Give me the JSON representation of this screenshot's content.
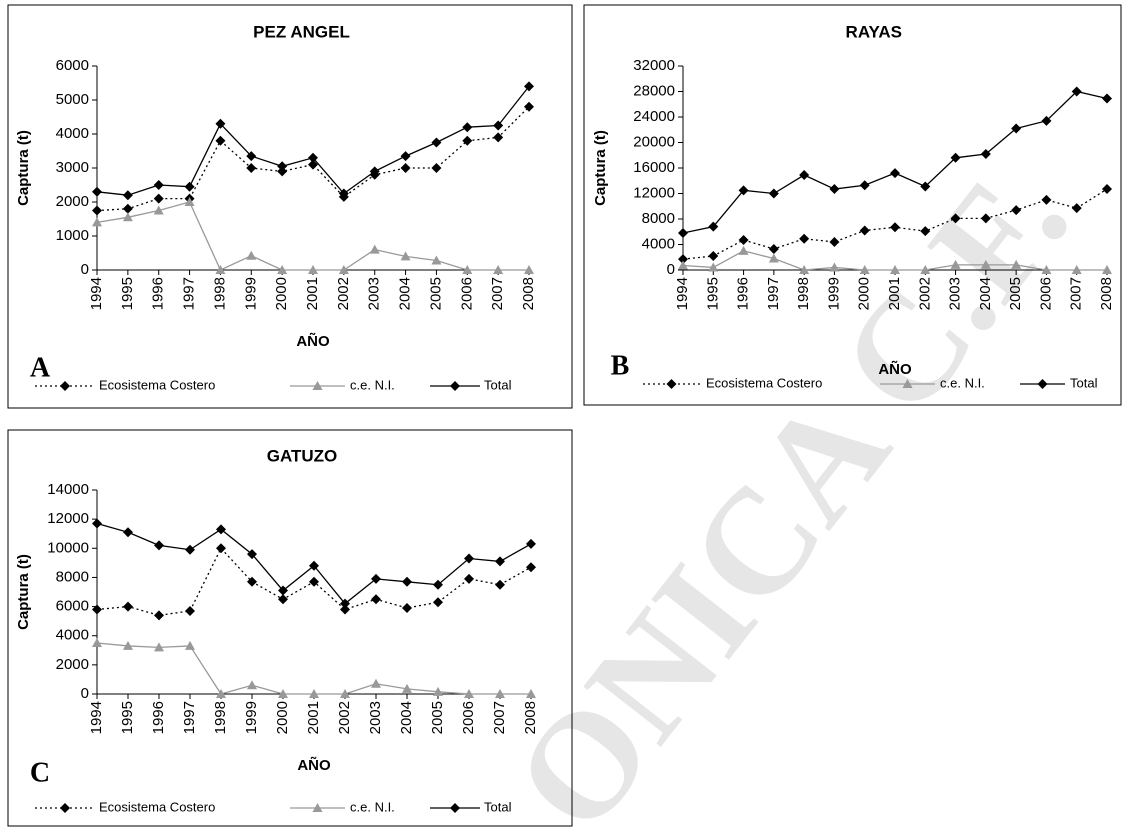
{
  "chart_data": [
    {
      "type": "line",
      "title": "PEZ ANGEL",
      "panel_label": "A",
      "y_label": "Captura (t)",
      "x_label": "AÑO",
      "categories": [
        "1994",
        "1995",
        "1996",
        "1997",
        "1998",
        "1999",
        "2000",
        "2001",
        "2002",
        "2003",
        "2004",
        "2005",
        "2006",
        "2007",
        "2008"
      ],
      "series": [
        {
          "name": "Ecosistema Costero",
          "color": "#000000",
          "dash": "dotted",
          "marker": "diamond",
          "values": [
            1750,
            1800,
            2100,
            2100,
            3800,
            3000,
            2900,
            3100,
            2150,
            2800,
            3000,
            3000,
            3800,
            3900,
            4800
          ]
        },
        {
          "name": "c.e. N.I.",
          "color": "#999999",
          "dash": "solid",
          "marker": "triangle",
          "values": [
            1400,
            1550,
            1750,
            2000,
            0,
            420,
            0,
            0,
            0,
            600,
            400,
            280,
            0,
            0,
            0
          ]
        },
        {
          "name": "Total",
          "color": "#000000",
          "dash": "solid",
          "marker": "diamond",
          "values": [
            2300,
            2200,
            2500,
            2450,
            4300,
            3350,
            3050,
            3300,
            2250,
            2900,
            3350,
            3750,
            4200,
            4250,
            5400
          ]
        }
      ],
      "ylim": [
        0,
        6000
      ],
      "yticks": [
        0,
        1000,
        2000,
        3000,
        4000,
        5000,
        6000
      ]
    },
    {
      "type": "line",
      "title": "RAYAS",
      "panel_label": "B",
      "y_label": "Captura (t)",
      "x_label": "AÑO",
      "categories": [
        "1994",
        "1995",
        "1996",
        "1997",
        "1998",
        "1999",
        "2000",
        "2001",
        "2002",
        "2003",
        "2004",
        "2005",
        "2006",
        "2007",
        "2008"
      ],
      "series": [
        {
          "name": "Ecosistema Costero",
          "color": "#000000",
          "dash": "dotted",
          "marker": "diamond",
          "values": [
            1700,
            2200,
            4700,
            3300,
            4900,
            4400,
            6200,
            6700,
            6100,
            8100,
            8100,
            9400,
            11000,
            9700,
            12700
          ]
        },
        {
          "name": "c.e. N.I.",
          "color": "#999999",
          "dash": "solid",
          "marker": "triangle",
          "values": [
            700,
            400,
            3000,
            1800,
            0,
            400,
            0,
            0,
            0,
            800,
            800,
            800,
            0,
            0,
            0
          ]
        },
        {
          "name": "Total",
          "color": "#000000",
          "dash": "solid",
          "marker": "diamond",
          "values": [
            5800,
            6800,
            12500,
            12000,
            14900,
            12700,
            13300,
            15200,
            13100,
            17600,
            18200,
            22200,
            23400,
            28000,
            26900
          ]
        }
      ],
      "ylim": [
        0,
        32000
      ],
      "yticks": [
        0,
        4000,
        8000,
        12000,
        16000,
        20000,
        24000,
        28000,
        32000
      ]
    },
    {
      "type": "line",
      "title": "GATUZO",
      "panel_label": "C",
      "y_label": "Captura (t)",
      "x_label": "AÑO",
      "categories": [
        "1994",
        "1995",
        "1996",
        "1997",
        "1998",
        "1999",
        "2000",
        "2001",
        "2002",
        "2003",
        "2004",
        "2005",
        "2006",
        "2007",
        "2008"
      ],
      "series": [
        {
          "name": "Ecosistema Costero",
          "color": "#000000",
          "dash": "dotted",
          "marker": "diamond",
          "values": [
            5800,
            6000,
            5400,
            5700,
            10000,
            7700,
            6500,
            7700,
            5800,
            6500,
            5900,
            6300,
            7900,
            7500,
            8700
          ]
        },
        {
          "name": "c.e. N.I.",
          "color": "#999999",
          "dash": "solid",
          "marker": "triangle",
          "values": [
            3500,
            3300,
            3200,
            3300,
            0,
            600,
            0,
            0,
            0,
            700,
            350,
            150,
            0,
            0,
            0
          ]
        },
        {
          "name": "Total",
          "color": "#000000",
          "dash": "solid",
          "marker": "diamond",
          "values": [
            11700,
            11100,
            10200,
            9900,
            11300,
            9600,
            7100,
            8800,
            6200,
            7900,
            7700,
            7500,
            9300,
            9100,
            10300
          ]
        }
      ],
      "ylim": [
        0,
        14000
      ],
      "yticks": [
        0,
        2000,
        4000,
        6000,
        8000,
        10000,
        12000,
        14000
      ]
    }
  ],
  "watermark": "ONICA C.F."
}
